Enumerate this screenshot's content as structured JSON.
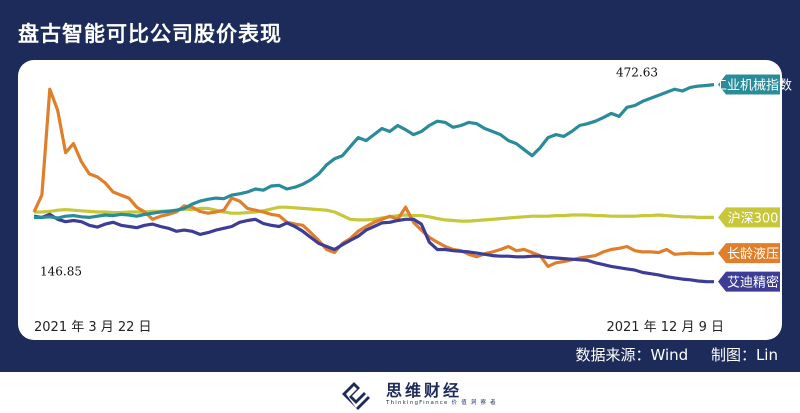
{
  "title": "盘古智能可比公司股价表现",
  "source": {
    "data_source": "数据来源：Wind",
    "author": "制图：Lin"
  },
  "brand": {
    "name": "思维财经",
    "sub": "ThinkingFinance",
    "sub_cn": "价 值 洞 察 者"
  },
  "chart_data": {
    "type": "line",
    "title": "盘古智能可比公司股价表现",
    "x_start_label": "2021 年 3 月 22 日",
    "x_end_label": "2021 年 12 月 9 日",
    "ylim": [
      100,
      500
    ],
    "grid": false,
    "legend": "right",
    "annotations": [
      {
        "text": "472.63",
        "series": "工业机械指数"
      },
      {
        "text": "146.85",
        "series": "艾迪精密"
      }
    ],
    "series": [
      {
        "name": "工业机械指数",
        "color": "#2a8c9a",
        "values": [
          253,
          253,
          254,
          252,
          255,
          256,
          254,
          253,
          255,
          257,
          256,
          258,
          257,
          255,
          258,
          260,
          262,
          263,
          265,
          268,
          275,
          280,
          283,
          285,
          284,
          290,
          292,
          295,
          300,
          298,
          305,
          306,
          300,
          303,
          308,
          315,
          325,
          340,
          350,
          355,
          370,
          385,
          380,
          390,
          400,
          395,
          405,
          398,
          390,
          395,
          405,
          412,
          410,
          402,
          405,
          410,
          408,
          400,
          395,
          390,
          380,
          375,
          365,
          355,
          368,
          385,
          390,
          387,
          395,
          405,
          408,
          412,
          418,
          425,
          420,
          435,
          438,
          445,
          450,
          455,
          460,
          465,
          462,
          468,
          470,
          471,
          472.63
        ]
      },
      {
        "name": "沪深300",
        "color": "#c6c73a",
        "values": [
          262,
          262,
          263,
          265,
          266,
          265,
          264,
          263,
          262,
          262,
          261,
          261,
          262,
          262,
          262,
          263,
          263,
          264,
          265,
          267,
          266,
          268,
          268,
          265,
          262,
          260,
          260,
          261,
          262,
          264,
          267,
          270,
          270,
          269,
          268,
          267,
          266,
          265,
          262,
          256,
          250,
          249,
          249,
          250,
          252,
          254,
          256,
          257,
          256,
          256,
          254,
          251,
          249,
          248,
          247,
          247,
          248,
          249,
          250,
          251,
          252,
          253,
          254,
          255,
          255,
          255,
          256,
          256,
          257,
          257,
          257,
          256,
          256,
          255,
          255,
          255,
          255,
          256,
          256,
          257,
          256,
          255,
          254,
          254,
          253,
          253,
          253
        ]
      },
      {
        "name": "长龄液压",
        "color": "#e07f2b",
        "values": [
          262,
          290,
          465,
          430,
          360,
          375,
          345,
          325,
          320,
          310,
          295,
          290,
          285,
          270,
          262,
          250,
          255,
          258,
          262,
          272,
          270,
          263,
          260,
          262,
          265,
          285,
          280,
          268,
          265,
          262,
          258,
          256,
          245,
          242,
          240,
          228,
          215,
          200,
          195,
          210,
          218,
          230,
          238,
          245,
          250,
          255,
          250,
          270,
          245,
          232,
          220,
          212,
          205,
          200,
          198,
          192,
          188,
          193,
          196,
          200,
          205,
          198,
          200,
          195,
          190,
          172,
          178,
          180,
          183,
          186,
          188,
          190,
          196,
          200,
          202,
          205,
          198,
          196,
          196,
          195,
          200,
          192,
          193,
          194,
          193,
          193,
          194
        ]
      },
      {
        "name": "艾迪精密",
        "color": "#3d3d97",
        "values": [
          255,
          253,
          258,
          250,
          246,
          248,
          246,
          240,
          237,
          242,
          245,
          240,
          238,
          236,
          240,
          242,
          238,
          235,
          230,
          232,
          230,
          225,
          228,
          232,
          235,
          238,
          245,
          248,
          250,
          243,
          240,
          238,
          244,
          238,
          230,
          220,
          210,
          205,
          200,
          208,
          215,
          222,
          232,
          238,
          244,
          245,
          248,
          250,
          250,
          242,
          212,
          200,
          200,
          198,
          197,
          196,
          194,
          192,
          190,
          189,
          189,
          188,
          188,
          189,
          189,
          187,
          186,
          185,
          184,
          183,
          182,
          178,
          175,
          172,
          170,
          168,
          166,
          162,
          160,
          158,
          155,
          153,
          151,
          150,
          148,
          147,
          146.85
        ]
      }
    ]
  }
}
